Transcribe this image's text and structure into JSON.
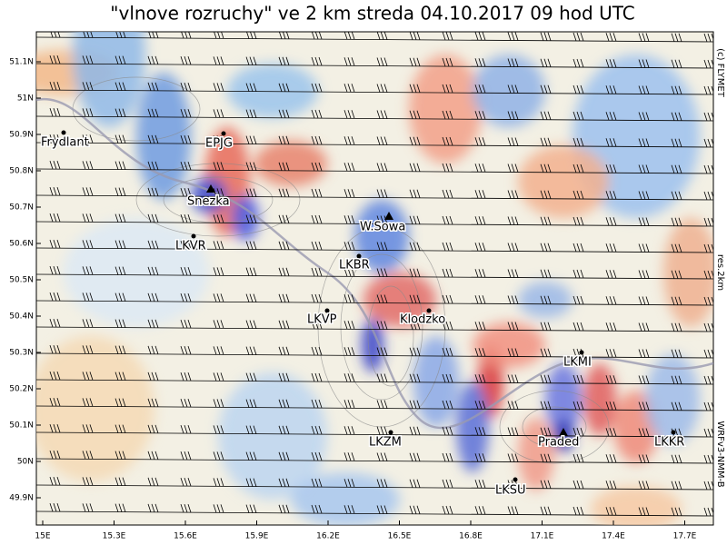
{
  "title": "\"vlnove rozruchy\" ve 2 km streda  04.10.2017 09 hod UTC",
  "credits": [
    "(c) FLYMET",
    "res.2km",
    "WRFv3-NMM-B"
  ],
  "lat_ticks": [
    "51.1N",
    "51N",
    "50.9N",
    "50.8N",
    "50.7N",
    "50.6N",
    "50.5N",
    "50.4N",
    "50.3N",
    "50.2N",
    "50.1N",
    "50N",
    "49.9N"
  ],
  "lon_ticks": [
    "15E",
    "15.3E",
    "15.6E",
    "15.9E",
    "16.2E",
    "16.5E",
    "16.8E",
    "17.1E",
    "17.4E",
    "17.7E"
  ],
  "places": [
    "Frydlant",
    "EPJG",
    "Snezka",
    "W.Sowa",
    "LKVR",
    "LKBR",
    "LKVP",
    "Klodzko",
    "LKMI",
    "LKZM",
    "Praded",
    "LKKR",
    "LKSU"
  ]
}
